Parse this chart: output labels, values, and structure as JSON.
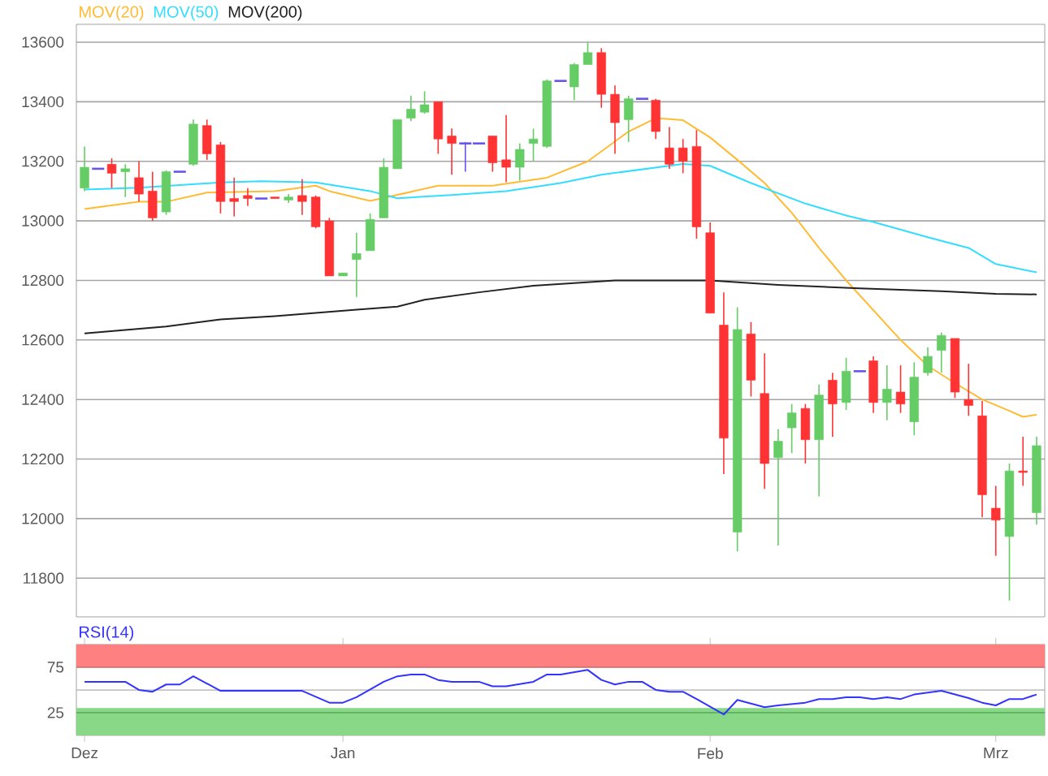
{
  "chart_data": [
    {
      "type": "candlestick",
      "categories": [
        null,
        null,
        null,
        null,
        null,
        null,
        null,
        null,
        null,
        null,
        null,
        null,
        null,
        null,
        null,
        null,
        null,
        null,
        null,
        null,
        null,
        null,
        null,
        null,
        null,
        null,
        null,
        null,
        null,
        null,
        null,
        null,
        null,
        null,
        null,
        null,
        null,
        null,
        null,
        null,
        null,
        null,
        null,
        null,
        null,
        null,
        null,
        null,
        null,
        null,
        null,
        null,
        null,
        null,
        null,
        null,
        null,
        null,
        null,
        null,
        null,
        null,
        null,
        null,
        null,
        null,
        null,
        null,
        null,
        null,
        null
      ],
      "ohlc": [
        [
          13110,
          13250,
          13100,
          13180
        ],
        [
          13175,
          13175,
          13175,
          13175
        ],
        [
          13190,
          13210,
          13110,
          13160
        ],
        [
          13165,
          13190,
          13080,
          13175
        ],
        [
          13145,
          13200,
          13065,
          13090
        ],
        [
          13100,
          13165,
          13000,
          13010
        ],
        [
          13030,
          13170,
          13020,
          13165
        ],
        [
          13165,
          13165,
          13165,
          13165
        ],
        [
          13190,
          13340,
          13185,
          13325
        ],
        [
          13320,
          13340,
          13205,
          13225
        ],
        [
          13255,
          13265,
          13025,
          13065
        ],
        [
          13075,
          13145,
          13015,
          13065
        ],
        [
          13085,
          13110,
          13050,
          13075
        ],
        [
          13075,
          13075,
          13075,
          13075
        ],
        [
          13080,
          13080,
          13075,
          13075
        ],
        [
          13070,
          13090,
          13060,
          13080
        ],
        [
          13085,
          13140,
          13020,
          13065
        ],
        [
          13080,
          13085,
          12975,
          12980
        ],
        [
          13000,
          13010,
          12815,
          12815
        ],
        [
          12815,
          12825,
          12815,
          12825
        ],
        [
          12870,
          12960,
          12745,
          12890
        ],
        [
          12900,
          13025,
          12900,
          13005
        ],
        [
          13010,
          13210,
          13010,
          13180
        ],
        [
          13175,
          13340,
          13175,
          13340
        ],
        [
          13345,
          13420,
          13335,
          13375
        ],
        [
          13365,
          13435,
          13360,
          13390
        ],
        [
          13400,
          13400,
          13225,
          13275
        ],
        [
          13285,
          13310,
          13155,
          13260
        ],
        [
          13260,
          13265,
          13165,
          13260
        ],
        [
          13260,
          13260,
          13260,
          13260
        ],
        [
          13285,
          13285,
          13165,
          13195
        ],
        [
          13205,
          13355,
          13130,
          13180
        ],
        [
          13180,
          13260,
          13135,
          13240
        ],
        [
          13260,
          13310,
          13200,
          13275
        ],
        [
          13250,
          13475,
          13245,
          13470
        ],
        [
          13470,
          13470,
          13470,
          13470
        ],
        [
          13450,
          13530,
          13405,
          13525
        ],
        [
          13525,
          13600,
          13525,
          13565
        ],
        [
          13565,
          13580,
          13380,
          13425
        ],
        [
          13425,
          13455,
          13225,
          13330
        ],
        [
          13340,
          13420,
          13265,
          13410
        ],
        [
          13410,
          13410,
          13410,
          13410
        ],
        [
          13405,
          13410,
          13275,
          13300
        ],
        [
          13245,
          13315,
          13175,
          13190
        ],
        [
          13245,
          13275,
          13160,
          13200
        ],
        [
          13250,
          13305,
          12940,
          12980
        ],
        [
          12960,
          12995,
          12690,
          12690
        ],
        [
          12650,
          12760,
          12150,
          12270
        ],
        [
          11955,
          12710,
          11890,
          12635
        ],
        [
          12620,
          12660,
          12410,
          12465
        ],
        [
          12420,
          12555,
          12100,
          12185
        ],
        [
          12205,
          12300,
          11910,
          12260
        ],
        [
          12305,
          12385,
          12220,
          12355
        ],
        [
          12370,
          12385,
          12185,
          12265
        ],
        [
          12265,
          12450,
          12075,
          12415
        ],
        [
          12465,
          12490,
          12275,
          12385
        ],
        [
          12390,
          12540,
          12365,
          12495
        ],
        [
          12495,
          12495,
          12495,
          12495
        ],
        [
          12530,
          12545,
          12355,
          12390
        ],
        [
          12390,
          12515,
          12330,
          12435
        ],
        [
          12425,
          12515,
          12355,
          12385
        ],
        [
          12325,
          12525,
          12280,
          12475
        ],
        [
          12490,
          12575,
          12480,
          12545
        ],
        [
          12565,
          12625,
          12490,
          12615
        ],
        [
          12605,
          12605,
          12405,
          12425
        ],
        [
          12400,
          12520,
          12345,
          12380
        ],
        [
          12345,
          12395,
          12005,
          12080
        ],
        [
          12035,
          12110,
          11875,
          11995
        ],
        [
          11940,
          12185,
          11725,
          12160
        ],
        [
          12160,
          12275,
          12110,
          12155
        ],
        [
          12020,
          12275,
          11980,
          12245
        ]
      ],
      "colors": [
        "#66cc66",
        "#6655ee",
        "#ff3333",
        "#66cc66",
        "#ff3333",
        "#ff3333",
        "#66cc66",
        "#6655ee",
        "#66cc66",
        "#ff3333",
        "#ff3333",
        "#ff3333",
        "#ff3333",
        "#6655ee",
        "#ff3333",
        "#66cc66",
        "#ff3333",
        "#ff3333",
        "#ff3333",
        "#66cc66",
        "#66cc66",
        "#66cc66",
        "#66cc66",
        "#66cc66",
        "#66cc66",
        "#66cc66",
        "#ff3333",
        "#ff3333",
        "#6655ee",
        "#6655ee",
        "#ff3333",
        "#ff3333",
        "#66cc66",
        "#66cc66",
        "#66cc66",
        "#6655ee",
        "#66cc66",
        "#66cc66",
        "#ff3333",
        "#ff3333",
        "#66cc66",
        "#6655ee",
        "#ff3333",
        "#ff3333",
        "#ff3333",
        "#ff3333",
        "#ff3333",
        "#ff3333",
        "#66cc66",
        "#ff3333",
        "#ff3333",
        "#66cc66",
        "#66cc66",
        "#ff3333",
        "#66cc66",
        "#ff3333",
        "#66cc66",
        "#6655ee",
        "#ff3333",
        "#66cc66",
        "#ff3333",
        "#66cc66",
        "#66cc66",
        "#66cc66",
        "#ff3333",
        "#ff3333",
        "#ff3333",
        "#ff3333",
        "#66cc66",
        "#ff3333",
        "#66cc66"
      ],
      "series": [
        {
          "name": "MOV(20)",
          "type": "line",
          "color": "#ffbb33",
          "values": [
            13040,
            null,
            null,
            null,
            13064,
            null,
            13064,
            null,
            null,
            13095,
            null,
            null,
            null,
            null,
            13100,
            null,
            null,
            13118,
            13100,
            null,
            null,
            13067,
            null,
            null,
            null,
            null,
            13118,
            null,
            null,
            null,
            13118,
            null,
            null,
            null,
            13145,
            null,
            null,
            13200,
            null,
            null,
            13300,
            null,
            13345,
            null,
            13338,
            null,
            13280,
            null,
            13205,
            null,
            13127,
            null,
            13027,
            null,
            12909,
            null,
            12800,
            null,
            12700,
            null,
            12600,
            null,
            12513,
            null,
            12455,
            null,
            12400,
            null,
            12362,
            12342,
            12349
          ]
        },
        {
          "name": "MOV(50)",
          "type": "line",
          "color": "#33ddff",
          "values": [
            13105,
            null,
            null,
            null,
            13111,
            null,
            null,
            null,
            null,
            null,
            13129,
            null,
            null,
            13133,
            null,
            null,
            null,
            13129,
            null,
            null,
            null,
            13100,
            null,
            13076,
            null,
            null,
            null,
            13087,
            null,
            null,
            null,
            13100,
            null,
            null,
            null,
            13127,
            null,
            null,
            13155,
            null,
            null,
            13173,
            null,
            null,
            13191,
            null,
            13185,
            null,
            null,
            13127,
            null,
            null,
            null,
            13058,
            null,
            null,
            13018,
            null,
            12996,
            null,
            null,
            null,
            12945,
            null,
            null,
            12909,
            null,
            12855,
            null,
            null,
            12827
          ]
        },
        {
          "name": "MOV(200)",
          "type": "line",
          "color": "#222222",
          "values": [
            12622,
            null,
            null,
            null,
            null,
            null,
            12645,
            null,
            null,
            null,
            12669,
            null,
            null,
            null,
            12680,
            null,
            null,
            12691,
            null,
            null,
            12702,
            null,
            null,
            12712,
            null,
            12735,
            null,
            null,
            null,
            12760,
            null,
            null,
            null,
            12782,
            null,
            null,
            null,
            null,
            null,
            12800,
            null,
            null,
            null,
            null,
            null,
            null,
            12800,
            null,
            null,
            null,
            null,
            12785,
            null,
            null,
            null,
            null,
            null,
            12773,
            null,
            null,
            null,
            null,
            null,
            12764,
            null,
            null,
            null,
            12755,
            null,
            null,
            12753
          ]
        }
      ],
      "ylim": [
        11670,
        13660
      ],
      "yticks": [
        11800,
        12000,
        12200,
        12400,
        12600,
        12800,
        13000,
        13200,
        13400,
        13600
      ],
      "grid": "y",
      "tick_labels": "y",
      "legend": "top left"
    },
    {
      "type": "line",
      "title": "RSI(14)",
      "categories": [
        "Dez",
        null,
        null,
        null,
        null,
        null,
        null,
        null,
        null,
        null,
        null,
        null,
        null,
        null,
        null,
        null,
        null,
        null,
        null,
        "Jan",
        null,
        null,
        null,
        null,
        null,
        null,
        null,
        null,
        null,
        null,
        null,
        null,
        null,
        null,
        null,
        null,
        null,
        null,
        null,
        null,
        null,
        null,
        null,
        null,
        null,
        null,
        "Feb",
        null,
        null,
        null,
        null,
        null,
        null,
        null,
        null,
        null,
        null,
        null,
        null,
        null,
        null,
        null,
        null,
        null,
        null,
        null,
        null,
        "Mrz",
        null,
        null,
        null
      ],
      "series": [
        {
          "color": "#3333ff",
          "values": [
            59,
            null,
            null,
            59,
            50,
            48,
            56,
            56,
            65,
            null,
            49,
            null,
            null,
            null,
            null,
            null,
            49,
            null,
            36,
            36,
            42,
            null,
            59,
            65,
            67,
            67,
            61,
            59,
            null,
            59,
            54,
            54,
            null,
            59,
            67,
            67,
            null,
            72,
            61,
            56,
            59,
            59,
            50,
            48,
            48,
            40,
            null,
            23,
            39,
            null,
            31,
            33,
            null,
            36,
            40,
            40,
            42,
            42,
            40,
            42,
            40,
            45,
            null,
            49,
            45,
            41,
            36,
            33,
            40,
            40,
            45
          ]
        }
      ],
      "ylim": [
        0,
        100
      ],
      "yticks": [
        25,
        75
      ],
      "bands": [
        {
          "axis": "y",
          "from": 75,
          "to": 100,
          "color": "#ff8080"
        },
        {
          "axis": "y",
          "from": 0,
          "to": 30,
          "color": "#88d888"
        }
      ],
      "ref_lines": [
        {
          "axis": "y",
          "value": 75,
          "color": "#cc6666"
        },
        {
          "axis": "y",
          "value": 50,
          "color": "#b0b0b0"
        },
        {
          "axis": "y",
          "value": 25,
          "color": "#55aa55"
        }
      ]
    }
  ]
}
